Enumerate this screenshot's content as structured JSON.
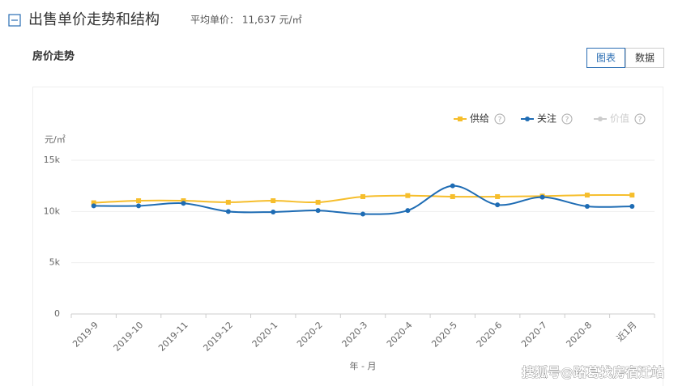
{
  "header": {
    "title": "出售单价走势和结构",
    "average_price": "平均单价： 11,637 元/㎡"
  },
  "section_title": "房价走势",
  "tabs": {
    "items": [
      "图表",
      "数据"
    ],
    "active": 0
  },
  "legend_help": "?",
  "watermark": "搜狐号@踏葛找房宿迁站",
  "chart_data": {
    "type": "line",
    "y_label": "元/㎡",
    "x_label": "年 - 月",
    "categories": [
      "2019-9",
      "2019-10",
      "2019-11",
      "2019-12",
      "2020-1",
      "2020-2",
      "2020-3",
      "2020-4",
      "2020-5",
      "2020-6",
      "2020-7",
      "2020-8",
      "近1月"
    ],
    "series": [
      {
        "name": "供给",
        "color": "#f6be2c",
        "marker": "square",
        "values": [
          10850,
          11050,
          11050,
          10900,
          11050,
          10900,
          11450,
          11550,
          11450,
          11450,
          11500,
          11600,
          11600
        ]
      },
      {
        "name": "关注",
        "color": "#1e6cb4",
        "marker": "circle",
        "values": [
          10550,
          10550,
          10800,
          10000,
          9950,
          10100,
          9750,
          10100,
          12500,
          10650,
          11400,
          10500,
          10500
        ]
      },
      {
        "name": "价值",
        "color": "#cccccc",
        "marker": "circle",
        "disabled": true,
        "values": [
          null,
          null,
          null,
          null,
          null,
          null,
          null,
          null,
          null,
          null,
          null,
          null,
          null
        ]
      }
    ],
    "ylim": [
      0,
      15000
    ],
    "yticks": [
      {
        "value": 0,
        "label": "0"
      },
      {
        "value": 5000,
        "label": "5k"
      },
      {
        "value": 10000,
        "label": "10k"
      },
      {
        "value": 15000,
        "label": "15k"
      }
    ],
    "grid": true
  }
}
